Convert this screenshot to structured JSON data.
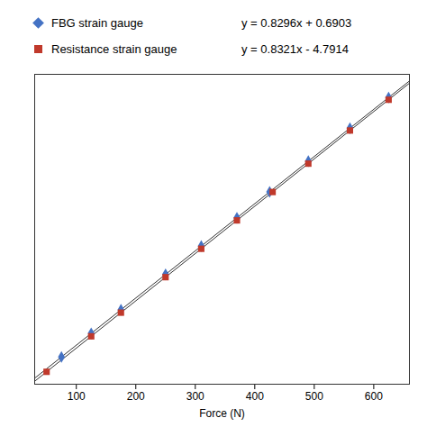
{
  "chart_data": {
    "type": "scatter",
    "xlabel": "Force (N)",
    "xlim": [
      30,
      660
    ],
    "xticks": [
      100,
      200,
      300,
      400,
      500,
      600
    ],
    "ylim": [
      15,
      560
    ],
    "tick_labels": "x",
    "grid": false,
    "legend": "top",
    "series": [
      {
        "name": "FBG strain gauge",
        "color": "#4472c4",
        "marker": "diamond",
        "x": [
          75,
          125,
          175,
          250,
          310,
          370,
          425,
          490,
          560,
          625
        ],
        "values": [
          62.9103,
          104.3903,
          145.8703,
          208.0903,
          257.8663,
          307.6423,
          353.2703,
          407.1943,
          465.2663,
          519.1903
        ],
        "equation": "y = 0.8296x + 0.6903",
        "trendline": {
          "x": [
            30,
            660
          ],
          "values": [
            25.5783,
            548.2263
          ],
          "color": "#333333"
        }
      },
      {
        "name": "Resistance strain gauge",
        "color": "#c0392b",
        "marker": "square",
        "x": [
          50,
          125,
          175,
          250,
          310,
          370,
          430,
          490,
          560,
          625
        ],
        "values": [
          36.8136,
          99.2211,
          140.8261,
          203.2336,
          253.1596,
          303.0856,
          353.0116,
          402.9376,
          461.1846,
          515.2711
        ],
        "equation": "y = 0.8321x - 4.7914",
        "trendline": {
          "x": [
            30,
            660
          ],
          "values": [
            20.1716,
            544.3946
          ],
          "color": "#333333"
        }
      }
    ]
  }
}
